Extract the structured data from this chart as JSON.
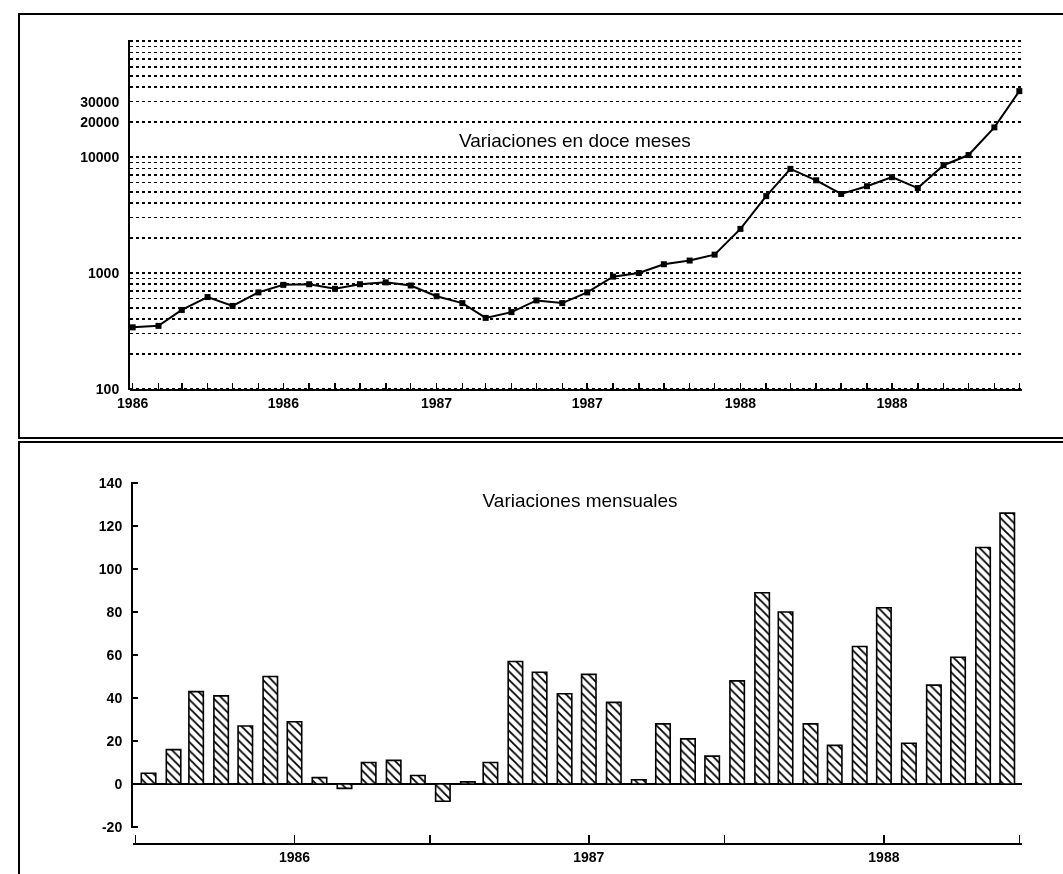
{
  "chart_data": [
    {
      "type": "line",
      "title": "Variaciones en doce meses",
      "x": [
        "1986-01",
        "1986-02",
        "1986-03",
        "1986-04",
        "1986-05",
        "1986-06",
        "1986-07",
        "1986-08",
        "1986-09",
        "1986-10",
        "1986-11",
        "1986-12",
        "1987-01",
        "1987-02",
        "1987-03",
        "1987-04",
        "1987-05",
        "1987-06",
        "1987-07",
        "1987-08",
        "1987-09",
        "1987-10",
        "1987-11",
        "1987-12",
        "1988-01",
        "1988-02",
        "1988-03",
        "1988-04",
        "1988-05",
        "1988-06",
        "1988-07",
        "1988-08",
        "1988-09",
        "1988-10",
        "1988-11",
        "1988-12"
      ],
      "values": [
        340,
        350,
        480,
        620,
        520,
        680,
        790,
        800,
        730,
        800,
        830,
        780,
        630,
        550,
        410,
        460,
        580,
        550,
        680,
        930,
        1000,
        1190,
        1280,
        1440,
        2400,
        4600,
        7900,
        6300,
        4800,
        5600,
        6700,
        5400,
        8500,
        10400,
        18000,
        37000
      ],
      "color": "#000000",
      "marker": "square",
      "line_style": "solid",
      "log": true,
      "grid": "y",
      "xlim": [
        "1986-01",
        "1988-12"
      ],
      "xticks": [
        {
          "value": "1986-01",
          "label": "1986"
        },
        {
          "value": "1986-02",
          "label": null
        },
        {
          "value": "1986-03",
          "label": null
        },
        {
          "value": "1986-04",
          "label": null
        },
        {
          "value": "1986-05",
          "label": null
        },
        {
          "value": "1986-06",
          "label": null
        },
        {
          "value": "1986-07",
          "label": "1986"
        },
        {
          "value": "1986-08",
          "label": null
        },
        {
          "value": "1986-09",
          "label": null
        },
        {
          "value": "1986-10",
          "label": null
        },
        {
          "value": "1986-11",
          "label": null
        },
        {
          "value": "1986-12",
          "label": null
        },
        {
          "value": "1987-01",
          "label": "1987"
        },
        {
          "value": "1987-02",
          "label": null
        },
        {
          "value": "1987-03",
          "label": null
        },
        {
          "value": "1987-04",
          "label": null
        },
        {
          "value": "1987-05",
          "label": null
        },
        {
          "value": "1987-06",
          "label": null
        },
        {
          "value": "1987-07",
          "label": "1987"
        },
        {
          "value": "1987-08",
          "label": null
        },
        {
          "value": "1987-09",
          "label": null
        },
        {
          "value": "1987-10",
          "label": null
        },
        {
          "value": "1987-11",
          "label": null
        },
        {
          "value": "1987-12",
          "label": null
        },
        {
          "value": "1988-01",
          "label": "1988"
        },
        {
          "value": "1988-02",
          "label": null
        },
        {
          "value": "1988-03",
          "label": null
        },
        {
          "value": "1988-04",
          "label": null
        },
        {
          "value": "1988-05",
          "label": null
        },
        {
          "value": "1988-06",
          "label": null
        },
        {
          "value": "1988-07",
          "label": "1988"
        },
        {
          "value": "1988-08",
          "label": null
        },
        {
          "value": "1988-09",
          "label": null
        },
        {
          "value": "1988-10",
          "label": null
        },
        {
          "value": "1988-11",
          "label": null
        },
        {
          "value": "1988-12",
          "label": null
        }
      ],
      "ylim": [
        100,
        100000
      ],
      "yticks": [
        100,
        {
          "value": 200,
          "label": null
        },
        {
          "value": 300,
          "label": null
        },
        {
          "value": 400,
          "label": null
        },
        {
          "value": 500,
          "label": null
        },
        {
          "value": 600,
          "label": null
        },
        {
          "value": 700,
          "label": null
        },
        {
          "value": 800,
          "label": null
        },
        {
          "value": 900,
          "label": null
        },
        1000,
        {
          "value": 2000,
          "label": null
        },
        {
          "value": 3000,
          "label": null
        },
        {
          "value": 4000,
          "label": null
        },
        {
          "value": 5000,
          "label": null
        },
        {
          "value": 6000,
          "label": null
        },
        {
          "value": 7000,
          "label": null
        },
        {
          "value": 8000,
          "label": null
        },
        {
          "value": 9000,
          "label": null
        },
        10000,
        20000,
        30000,
        {
          "value": 40000,
          "label": null
        },
        {
          "value": 50000,
          "label": null
        },
        {
          "value": 60000,
          "label": null
        },
        {
          "value": 70000,
          "label": null
        },
        {
          "value": 80000,
          "label": null
        },
        {
          "value": 90000,
          "label": null
        },
        {
          "value": 100000,
          "label": null
        }
      ]
    },
    {
      "type": "bar",
      "title": "Variaciones mensuales",
      "x": [
        "1986-01",
        "1986-02",
        "1986-03",
        "1986-04",
        "1986-05",
        "1986-06",
        "1986-07",
        "1986-08",
        "1986-09",
        "1986-10",
        "1986-11",
        "1986-12",
        "1987-01",
        "1987-02",
        "1987-03",
        "1987-04",
        "1987-05",
        "1987-06",
        "1987-07",
        "1987-08",
        "1987-09",
        "1987-10",
        "1987-11",
        "1987-12",
        "1988-01",
        "1988-02",
        "1988-03",
        "1988-04",
        "1988-05",
        "1988-06",
        "1988-07",
        "1988-08",
        "1988-09",
        "1988-10",
        "1988-11",
        "1988-12"
      ],
      "values": [
        5,
        16,
        43,
        41,
        27,
        50,
        29,
        3,
        -2,
        10,
        11,
        4,
        -8,
        1,
        10,
        57,
        52,
        42,
        51,
        38,
        2,
        28,
        21,
        13,
        48,
        89,
        80,
        28,
        18,
        64,
        82,
        19,
        46,
        59,
        110,
        126
      ],
      "color": "#000000",
      "xlim": [
        "1985-12-16",
        "1988-12-16"
      ],
      "xticks": [
        {
          "value": "1985-12-16",
          "label": null
        },
        {
          "value": "1986-07",
          "label": "1986"
        },
        {
          "value": "1986-12-16",
          "label": null
        },
        {
          "value": "1987-07",
          "label": "1987"
        },
        {
          "value": "1987-12-16",
          "label": null
        },
        {
          "value": "1988-07",
          "label": "1988"
        },
        {
          "value": "1988-12-16",
          "label": null
        }
      ],
      "ylim": [
        -20,
        140
      ],
      "yticks": [
        -20,
        0,
        20,
        40,
        60,
        80,
        100,
        120,
        140
      ]
    }
  ]
}
